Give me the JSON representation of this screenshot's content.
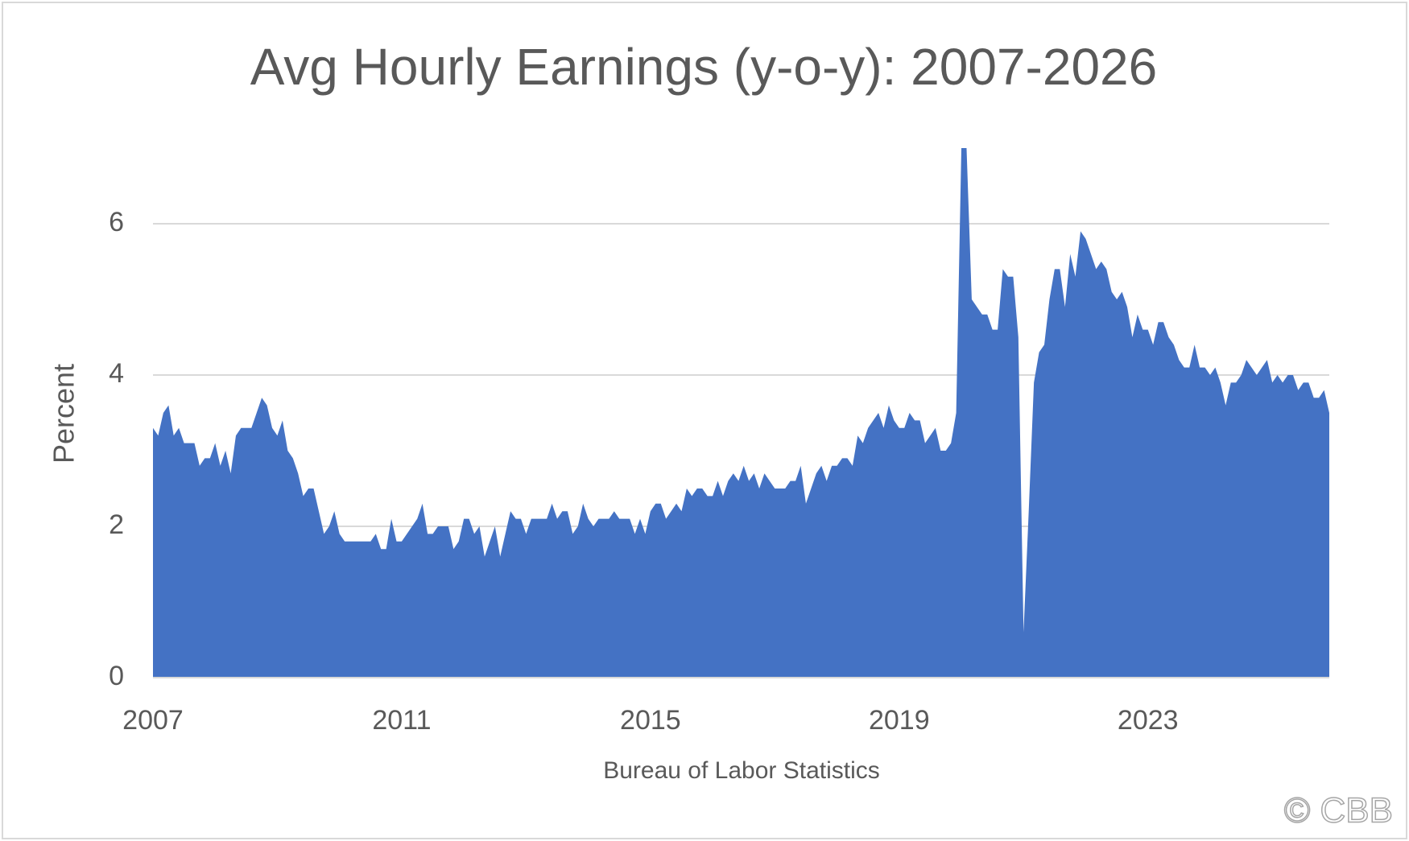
{
  "chart_data": {
    "type": "area",
    "title": "Avg Hourly Earnings (y-o-y): 2007-2026",
    "x_label": "Bureau of Labor Statistics",
    "y_label": "Percent",
    "watermark": "© CBB",
    "color": "#4472c4",
    "grid": true,
    "ylim": [
      0,
      7
    ],
    "yticks": [
      0,
      2,
      4,
      6
    ],
    "categories": [
      "2007",
      null,
      null,
      null,
      null,
      null,
      null,
      null,
      null,
      null,
      null,
      null,
      null,
      null,
      null,
      null,
      null,
      null,
      null,
      null,
      null,
      null,
      null,
      null,
      null,
      null,
      null,
      null,
      null,
      null,
      null,
      null,
      null,
      null,
      null,
      null,
      null,
      null,
      null,
      null,
      null,
      null,
      null,
      null,
      null,
      null,
      null,
      null,
      "2011",
      null,
      null,
      null,
      null,
      null,
      null,
      null,
      null,
      null,
      null,
      null,
      null,
      null,
      null,
      null,
      null,
      null,
      null,
      null,
      null,
      null,
      null,
      null,
      null,
      null,
      null,
      null,
      null,
      null,
      null,
      null,
      null,
      null,
      null,
      null,
      null,
      null,
      null,
      null,
      null,
      null,
      null,
      null,
      null,
      null,
      null,
      null,
      "2015",
      null,
      null,
      null,
      null,
      null,
      null,
      null,
      null,
      null,
      null,
      null,
      null,
      null,
      null,
      null,
      null,
      null,
      null,
      null,
      null,
      null,
      null,
      null,
      null,
      null,
      null,
      null,
      null,
      null,
      null,
      null,
      null,
      null,
      null,
      null,
      null,
      null,
      null,
      null,
      null,
      null,
      null,
      null,
      null,
      null,
      null,
      null,
      "2019",
      null,
      null,
      null,
      null,
      null,
      null,
      null,
      null,
      null,
      null,
      null,
      null,
      null,
      null,
      null,
      null,
      null,
      null,
      null,
      null,
      null,
      null,
      null,
      null,
      null,
      null,
      null,
      null,
      null,
      null,
      null,
      null,
      null,
      null,
      null,
      null,
      null,
      null,
      null,
      null,
      null,
      null,
      null,
      null,
      null,
      null,
      null,
      "2023",
      null,
      null,
      null,
      null,
      null,
      null,
      null,
      null,
      null,
      null,
      null,
      null,
      null,
      null,
      null,
      null,
      null,
      null,
      null,
      null,
      null,
      null,
      null,
      null,
      null,
      null,
      null,
      null,
      null,
      null,
      null,
      null,
      null,
      null,
      null
    ],
    "values": [
      3.3,
      3.2,
      3.5,
      3.6,
      3.2,
      3.3,
      3.1,
      3.1,
      3.1,
      2.8,
      2.9,
      2.9,
      3.1,
      2.8,
      3.0,
      2.7,
      3.2,
      3.3,
      3.3,
      3.3,
      3.5,
      3.7,
      3.6,
      3.3,
      3.2,
      3.4,
      3.0,
      2.9,
      2.7,
      2.4,
      2.5,
      2.5,
      2.2,
      1.9,
      2.0,
      2.2,
      1.9,
      1.8,
      1.8,
      1.8,
      1.8,
      1.8,
      1.8,
      1.9,
      1.7,
      1.7,
      2.1,
      1.8,
      1.8,
      1.9,
      2.0,
      2.1,
      2.3,
      1.9,
      1.9,
      2.0,
      2.0,
      2.0,
      1.7,
      1.8,
      2.1,
      2.1,
      1.9,
      2.0,
      1.6,
      1.8,
      2.0,
      1.6,
      1.9,
      2.2,
      2.1,
      2.1,
      1.9,
      2.1,
      2.1,
      2.1,
      2.1,
      2.3,
      2.1,
      2.2,
      2.2,
      1.9,
      2.0,
      2.3,
      2.1,
      2.0,
      2.1,
      2.1,
      2.1,
      2.2,
      2.1,
      2.1,
      2.1,
      1.9,
      2.1,
      1.9,
      2.2,
      2.3,
      2.3,
      2.1,
      2.2,
      2.3,
      2.2,
      2.5,
      2.4,
      2.5,
      2.5,
      2.4,
      2.4,
      2.6,
      2.4,
      2.6,
      2.7,
      2.6,
      2.8,
      2.6,
      2.7,
      2.5,
      2.7,
      2.6,
      2.5,
      2.5,
      2.5,
      2.6,
      2.6,
      2.8,
      2.3,
      2.5,
      2.7,
      2.8,
      2.6,
      2.8,
      2.8,
      2.9,
      2.9,
      2.8,
      3.2,
      3.1,
      3.3,
      3.4,
      3.5,
      3.3,
      3.6,
      3.4,
      3.3,
      3.3,
      3.5,
      3.4,
      3.4,
      3.1,
      3.2,
      3.3,
      3.0,
      3.0,
      3.1,
      3.5,
      7.0,
      7.0,
      5.0,
      4.9,
      4.8,
      4.8,
      4.6,
      4.6,
      5.4,
      5.3,
      5.3,
      4.5,
      0.6,
      2.2,
      3.9,
      4.3,
      4.4,
      5.0,
      5.4,
      5.4,
      4.9,
      5.6,
      5.3,
      5.9,
      5.8,
      5.6,
      5.4,
      5.5,
      5.4,
      5.1,
      5.0,
      5.1,
      4.9,
      4.5,
      4.8,
      4.6,
      4.6,
      4.4,
      4.7,
      4.7,
      4.5,
      4.4,
      4.2,
      4.1,
      4.1,
      4.4,
      4.1,
      4.1,
      4.0,
      4.1,
      3.9,
      3.6,
      3.9,
      3.9,
      4.0,
      4.2,
      4.1,
      4.0,
      4.1,
      4.2,
      3.9,
      4.0,
      3.9,
      4.0,
      4.0,
      3.8,
      3.9,
      3.9,
      3.7,
      3.7,
      3.8,
      3.5
    ]
  }
}
